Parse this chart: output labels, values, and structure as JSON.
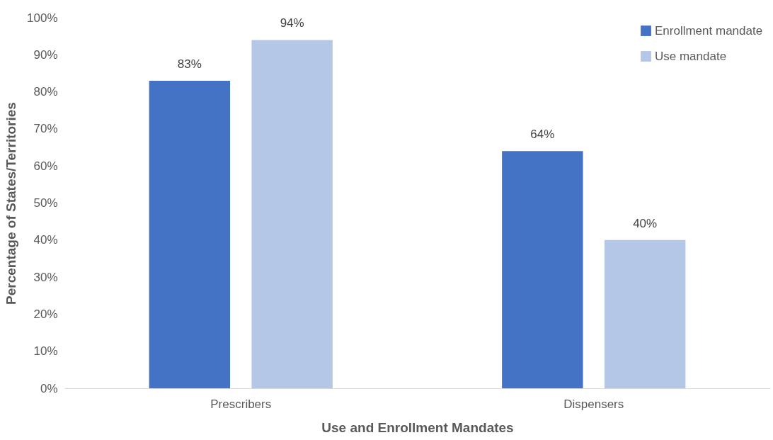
{
  "chart_data": {
    "type": "bar",
    "xlabel": "Use and Enrollment Mandates",
    "ylabel": "Percentage of States/Territories",
    "categories": [
      "Prescribers",
      "Dispensers"
    ],
    "series": [
      {
        "name": "Enrollment mandate",
        "color": "#4472c4",
        "values": [
          83,
          64
        ],
        "value_labels": [
          "83%",
          "64%"
        ]
      },
      {
        "name": "Use mandate",
        "color": "#b4c7e7",
        "values": [
          94,
          40
        ],
        "value_labels": [
          "94%",
          "40%"
        ]
      }
    ],
    "ylim": [
      0,
      100
    ],
    "yticks": [
      {
        "value": 0,
        "label": "0%"
      },
      {
        "value": 10,
        "label": "10%"
      },
      {
        "value": 20,
        "label": "20%"
      },
      {
        "value": 30,
        "label": "30%"
      },
      {
        "value": 40,
        "label": "40%"
      },
      {
        "value": 50,
        "label": "50%"
      },
      {
        "value": 60,
        "label": "60%"
      },
      {
        "value": 70,
        "label": "70%"
      },
      {
        "value": 80,
        "label": "80%"
      },
      {
        "value": 90,
        "label": "90%"
      },
      {
        "value": 100,
        "label": "100%"
      }
    ],
    "grid": false,
    "legend": "top right"
  }
}
